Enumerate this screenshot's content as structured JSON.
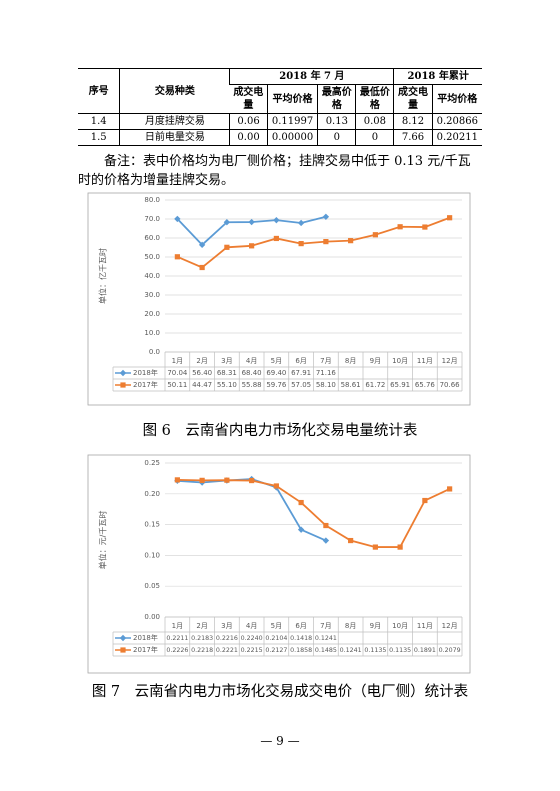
{
  "table": {
    "header": [
      "序号",
      "交易种类",
      "2018 年 7 月",
      "2018 年累计"
    ],
    "subheader": [
      "成交电量",
      "平均价格",
      "最高价格",
      "最低价格",
      "成交电量",
      "平均价格"
    ],
    "rows": [
      [
        "1.4",
        "月度挂牌交易",
        "0.06",
        "0.11997",
        "0.13",
        "0.08",
        "8.12",
        "0.20866"
      ],
      [
        "1.5",
        "日前电量交易",
        "0.00",
        "0.00000",
        "0",
        "0",
        "7.66",
        "0.20211"
      ]
    ]
  },
  "note": "备注：表中价格均为电厂侧价格；挂牌交易中低于 0.13 元/千瓦时的价格为增量挂牌交易。",
  "chart_data": [
    {
      "type": "line",
      "title": "图 6　云南省内电力市场化交易电量统计表",
      "ylabel": "单位：亿千瓦时",
      "grid": true,
      "categories": [
        "1月",
        "2月",
        "3月",
        "4月",
        "5月",
        "6月",
        "7月",
        "8月",
        "9月",
        "10月",
        "11月",
        "12月"
      ],
      "ylim": [
        0,
        80
      ],
      "yticks": [
        {
          "value": 0,
          "label": "0.0"
        },
        {
          "value": 10,
          "label": "10.0"
        },
        {
          "value": 20,
          "label": "20.0"
        },
        {
          "value": 30,
          "label": "30.0"
        },
        {
          "value": 40,
          "label": "40.0"
        },
        {
          "value": 50,
          "label": "50.0"
        },
        {
          "value": 60,
          "label": "60.0"
        },
        {
          "value": 70,
          "label": "70.0"
        },
        {
          "value": 80,
          "label": "80.0"
        }
      ],
      "series": [
        {
          "name": "2018年",
          "color": "#5b9bd5",
          "marker": "diamond",
          "values": [
            70.04,
            56.4,
            68.31,
            68.4,
            69.4,
            67.91,
            71.16,
            null,
            null,
            null,
            null,
            null
          ],
          "value_labels": [
            "70.04",
            "56.40",
            "68.31",
            "68.40",
            "69.40",
            "67.91",
            "71.16",
            null,
            null,
            null,
            null,
            null
          ]
        },
        {
          "name": "2017年",
          "color": "#ed7d31",
          "marker": "square",
          "values": [
            50.11,
            44.47,
            55.1,
            55.88,
            59.76,
            57.05,
            58.1,
            58.61,
            61.72,
            65.91,
            65.76,
            70.66
          ],
          "value_labels": [
            "50.11",
            "44.47",
            "55.10",
            "55.88",
            "59.76",
            "57.05",
            "58.10",
            "58.61",
            "61.72",
            "65.91",
            "65.76",
            "70.66"
          ]
        }
      ]
    },
    {
      "type": "line",
      "title": "图 7　云南省内电力市场化交易成交电价（电厂侧）统计表",
      "ylabel": "单位：元/千瓦时",
      "grid": true,
      "categories": [
        "1月",
        "2月",
        "3月",
        "4月",
        "5月",
        "6月",
        "7月",
        "8月",
        "9月",
        "10月",
        "11月",
        "12月"
      ],
      "ylim": [
        0,
        0.25
      ],
      "yticks": [
        {
          "value": 0,
          "label": "0.00"
        },
        {
          "value": 0.05,
          "label": "0.05"
        },
        {
          "value": 0.1,
          "label": "0.10"
        },
        {
          "value": 0.15,
          "label": "0.15"
        },
        {
          "value": 0.2,
          "label": "0.20"
        },
        {
          "value": 0.25,
          "label": "0.25"
        }
      ],
      "series": [
        {
          "name": "2018年",
          "color": "#5b9bd5",
          "marker": "diamond",
          "values": [
            0.2211,
            0.2183,
            0.2216,
            0.224,
            0.2104,
            0.1418,
            0.1241,
            null,
            null,
            null,
            null,
            null
          ],
          "value_labels": [
            "0.2211",
            "0.2183",
            "0.2216",
            "0.2240",
            "0.2104",
            "0.1418",
            "0.1241",
            null,
            null,
            null,
            null,
            null
          ]
        },
        {
          "name": "2017年",
          "color": "#ed7d31",
          "marker": "square",
          "values": [
            0.2226,
            0.2218,
            0.2221,
            0.2215,
            0.2127,
            0.1858,
            0.1485,
            0.1241,
            0.1135,
            0.1135,
            0.1891,
            0.2079
          ],
          "value_labels": [
            "0.2226",
            "0.2218",
            "0.2221",
            "0.2215",
            "0.2127",
            "0.1858",
            "0.1485",
            "0.1241",
            "0.1135",
            "0.1135",
            "0.1891",
            "0.2079"
          ]
        }
      ]
    }
  ],
  "page_number": "— 9 —"
}
